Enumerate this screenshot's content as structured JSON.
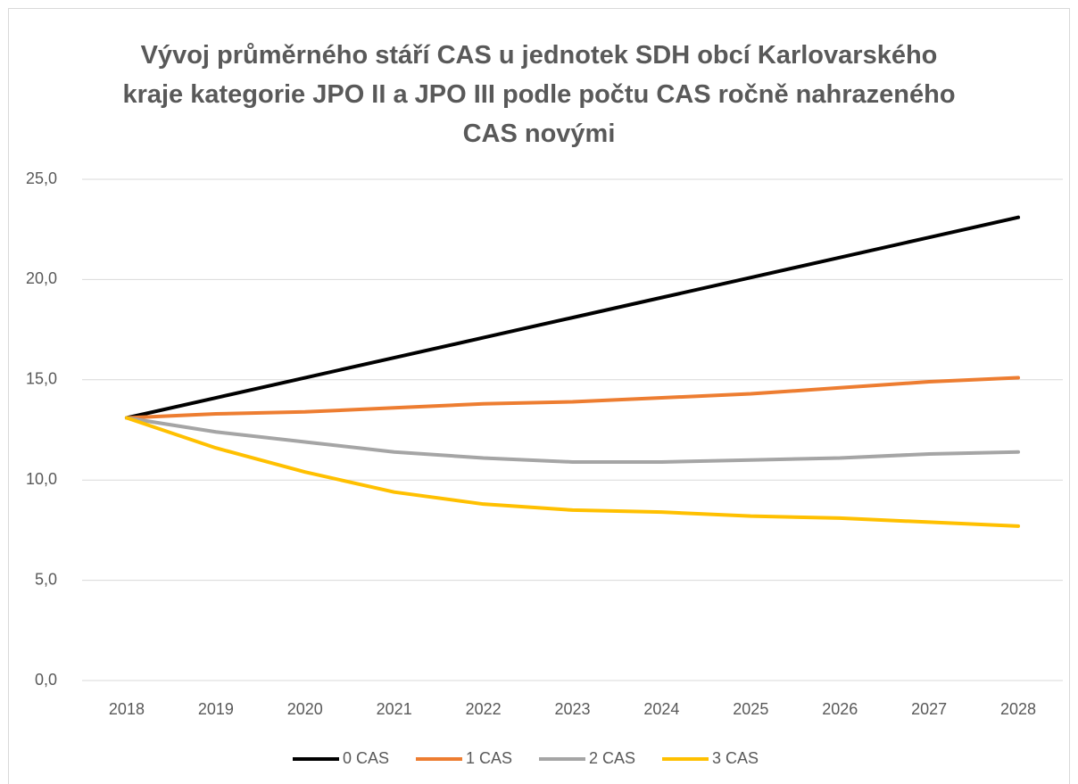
{
  "chart_data": {
    "type": "line",
    "title": "Vývoj průměrného stáří CAS u jednotek SDH obcí Karlovarského kraje kategorie JPO II a JPO III podle počtu CAS ročně nahrazeného CAS novými",
    "categories": [
      "2018",
      "2019",
      "2020",
      "2021",
      "2022",
      "2023",
      "2024",
      "2025",
      "2026",
      "2027",
      "2028"
    ],
    "series": [
      {
        "name": "0 CAS",
        "color": "#000000",
        "values": [
          13.1,
          14.1,
          15.1,
          16.1,
          17.1,
          18.1,
          19.1,
          20.1,
          21.1,
          22.1,
          23.1
        ]
      },
      {
        "name": "1 CAS",
        "color": "#ed7d31",
        "values": [
          13.1,
          13.3,
          13.4,
          13.6,
          13.8,
          13.9,
          14.1,
          14.3,
          14.6,
          14.9,
          15.1
        ]
      },
      {
        "name": "2 CAS",
        "color": "#a5a5a5",
        "values": [
          13.1,
          12.4,
          11.9,
          11.4,
          11.1,
          10.9,
          10.9,
          11.0,
          11.1,
          11.3,
          11.4
        ]
      },
      {
        "name": "3 CAS",
        "color": "#ffc000",
        "values": [
          13.1,
          11.6,
          10.4,
          9.4,
          8.8,
          8.5,
          8.4,
          8.2,
          8.1,
          7.9,
          7.7
        ]
      }
    ],
    "ylim": [
      0,
      25
    ],
    "yticks": [
      {
        "value": 0,
        "label": "0,0"
      },
      {
        "value": 5,
        "label": "5,0"
      },
      {
        "value": 10,
        "label": "10,0"
      },
      {
        "value": 15,
        "label": "15,0"
      },
      {
        "value": 20,
        "label": "20,0"
      },
      {
        "value": 25,
        "label": "25,0"
      }
    ],
    "grid": true,
    "legend": "bottom"
  }
}
